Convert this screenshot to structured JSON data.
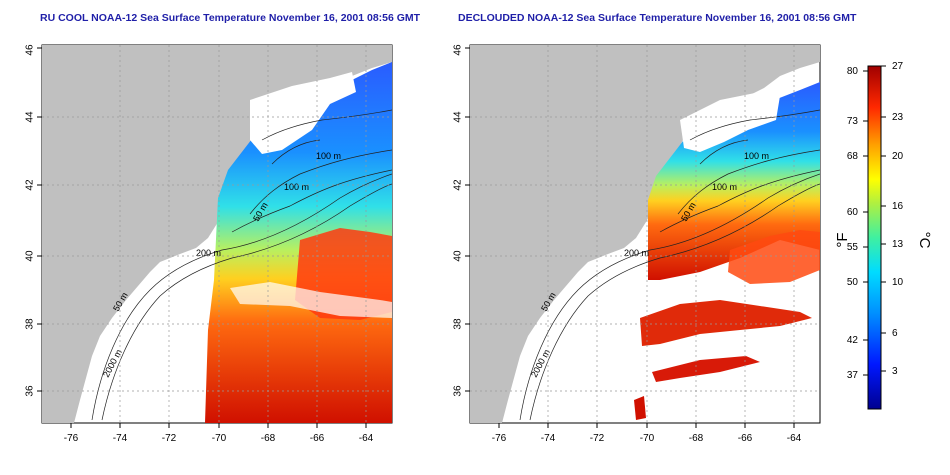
{
  "left_panel": {
    "title": "RU COOL NOAA-12 Sea Surface Temperature November 16, 2001 08:56 GMT",
    "contour_labels": [
      "100 m",
      "100 m",
      "50 m",
      "200 m",
      "50 m",
      "2000 m"
    ]
  },
  "right_panel": {
    "title": "DECLOUDED NOAA-12 Sea Surface Temperature November 16, 2001 08:56 GMT",
    "contour_labels": [
      "100 m",
      "100 m",
      "50 m",
      "200 m",
      "50 m",
      "2000 m"
    ]
  },
  "axes": {
    "x_ticks": [
      "-76",
      "-74",
      "-72",
      "-70",
      "-68",
      "-66",
      "-64"
    ],
    "y_ticks": [
      "36",
      "38",
      "40",
      "42",
      "44",
      "46"
    ],
    "lon_range": [
      -77,
      -63
    ],
    "lat_range": [
      35,
      46
    ]
  },
  "colorbar": {
    "left_unit": "°F",
    "right_unit": "°C",
    "f_ticks": [
      "80",
      "73",
      "68",
      "60",
      "55",
      "50",
      "42",
      "37"
    ],
    "c_ticks": [
      "27",
      "23",
      "20",
      "16",
      "13",
      "10",
      "6",
      "3"
    ],
    "range_c": [
      0,
      27
    ]
  },
  "colors": {
    "land": "#c0c0c0",
    "title": "#1f1fa8",
    "cold": "#0000c8",
    "warm": "#b40000"
  }
}
